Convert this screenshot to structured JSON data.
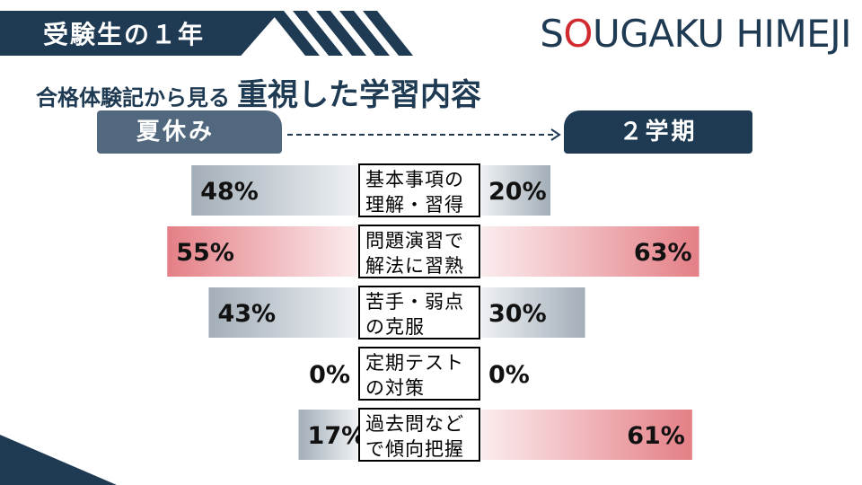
{
  "header": {
    "banner": "受験生の１年",
    "logo_prefix": "S",
    "logo_o": "O",
    "logo_suffix": "UGAKU HIMEJI",
    "subtitle_small": "合格体験記から見る",
    "subtitle_big": "重視した学習内容"
  },
  "periods": {
    "left": "夏休み",
    "right": "２学期"
  },
  "colors": {
    "navy": "#1f3a53",
    "slate": "#51687e",
    "grey_bar": "#a8b3bc",
    "red_bar": "#e07f85",
    "logo_o": "#d12a2f"
  },
  "chart_data": {
    "type": "bar",
    "layout": "butterfly",
    "categories": [
      [
        "基本事項の",
        "理解・習得"
      ],
      [
        "問題演習で",
        "解法に習熟"
      ],
      [
        "苦手・弱点",
        "の克服"
      ],
      [
        "定期テスト",
        "の対策"
      ],
      [
        "過去問など",
        "で傾向把握"
      ]
    ],
    "series": [
      {
        "name": "夏休み",
        "values": [
          48,
          55,
          43,
          0,
          17
        ]
      },
      {
        "name": "２学期",
        "values": [
          20,
          63,
          30,
          0,
          61
        ]
      }
    ],
    "highlight": [
      [
        false,
        true,
        false,
        false,
        false
      ],
      [
        false,
        true,
        false,
        false,
        true
      ]
    ],
    "value_suffix": "%",
    "xlim": [
      0,
      100
    ]
  }
}
